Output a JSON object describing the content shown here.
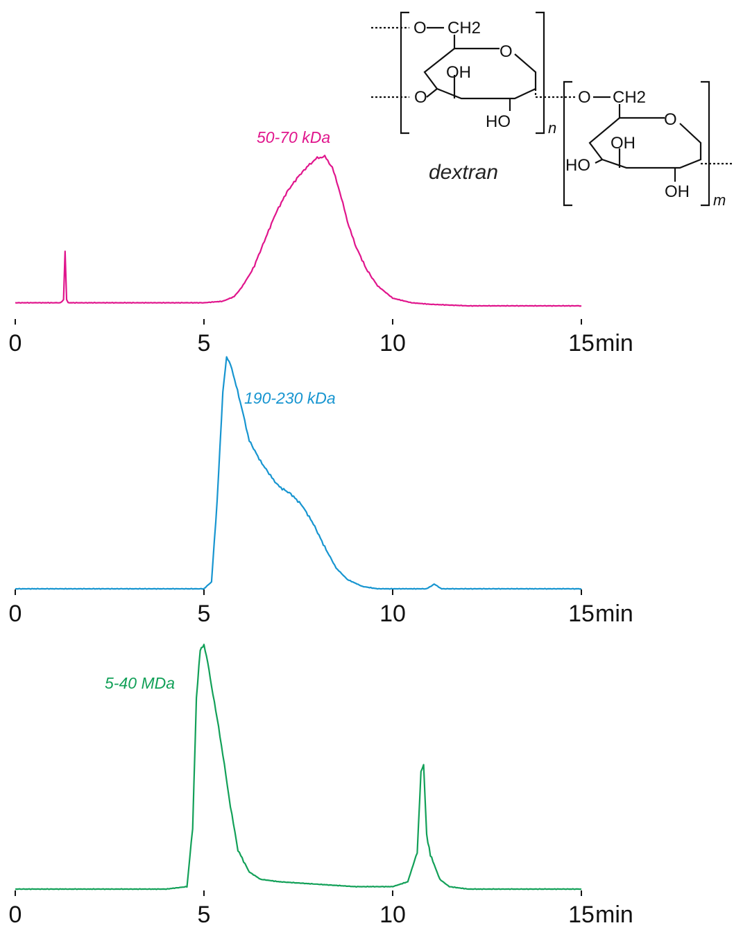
{
  "chart_data": [
    {
      "type": "line",
      "xlim": [
        0,
        15
      ],
      "x_ticks": [
        0,
        5,
        10,
        15
      ],
      "x_tick_labels": [
        "0",
        "5",
        "10",
        "15"
      ],
      "x_unit": "min",
      "series": [
        {
          "name": "50-70 kDa",
          "color": "#e0158c",
          "x": [
            0,
            1.2,
            1.28,
            1.32,
            1.36,
            1.4,
            2.5,
            4.0,
            5.0,
            5.5,
            5.8,
            6.0,
            6.3,
            6.6,
            6.9,
            7.2,
            7.5,
            7.8,
            8.0,
            8.2,
            8.4,
            8.6,
            8.8,
            9.0,
            9.3,
            9.6,
            10.0,
            10.5,
            11.0,
            12.0,
            13.0,
            14.0,
            15.0
          ],
          "y": [
            0.02,
            0.02,
            0.04,
            0.36,
            0.04,
            0.02,
            0.02,
            0.02,
            0.02,
            0.03,
            0.06,
            0.12,
            0.24,
            0.42,
            0.6,
            0.74,
            0.84,
            0.92,
            0.96,
            0.97,
            0.9,
            0.74,
            0.55,
            0.4,
            0.24,
            0.13,
            0.05,
            0.02,
            0.01,
            0.0,
            0.0,
            0.0,
            0.0
          ]
        },
        {
          "name": "190-230 kDa",
          "color": "#1795d0",
          "x": [
            0,
            2.0,
            4.0,
            5.0,
            5.2,
            5.35,
            5.5,
            5.6,
            5.7,
            5.85,
            6.0,
            6.2,
            6.5,
            6.8,
            7.0,
            7.3,
            7.6,
            7.9,
            8.2,
            8.5,
            8.8,
            9.2,
            9.6,
            10.0,
            10.5,
            10.9,
            11.1,
            11.3,
            12.0,
            13.0,
            15.0
          ],
          "y": [
            0.0,
            0.0,
            0.0,
            0.0,
            0.03,
            0.38,
            0.85,
            1.0,
            0.97,
            0.88,
            0.78,
            0.64,
            0.55,
            0.48,
            0.44,
            0.41,
            0.36,
            0.28,
            0.18,
            0.09,
            0.04,
            0.01,
            0.0,
            0.0,
            0.0,
            0.0,
            0.02,
            0.0,
            0.0,
            0.0,
            0.0
          ]
        },
        {
          "name": "5-40 MDa",
          "color": "#12a058",
          "x": [
            0,
            2.0,
            4.0,
            4.55,
            4.7,
            4.8,
            4.9,
            5.0,
            5.1,
            5.2,
            5.35,
            5.5,
            5.7,
            5.9,
            6.2,
            6.5,
            7.0,
            8.0,
            9.0,
            10.0,
            10.4,
            10.65,
            10.75,
            10.82,
            10.9,
            11.0,
            11.1,
            11.25,
            11.5,
            12.0,
            13.0,
            15.0
          ],
          "y": [
            0.0,
            0.0,
            0.0,
            0.01,
            0.25,
            0.78,
            0.98,
            1.0,
            0.93,
            0.83,
            0.7,
            0.55,
            0.34,
            0.16,
            0.07,
            0.04,
            0.03,
            0.02,
            0.01,
            0.01,
            0.03,
            0.15,
            0.48,
            0.51,
            0.22,
            0.14,
            0.1,
            0.04,
            0.01,
            0.0,
            0.0,
            0.0
          ]
        }
      ]
    }
  ],
  "structure": {
    "title": "dextran",
    "atoms": [
      "O",
      "CH2",
      "O",
      "OH",
      "O",
      "HO",
      "O",
      "CH2",
      "O",
      "OH",
      "HO",
      "OH"
    ],
    "repeat_n": "n",
    "repeat_m": "m"
  }
}
